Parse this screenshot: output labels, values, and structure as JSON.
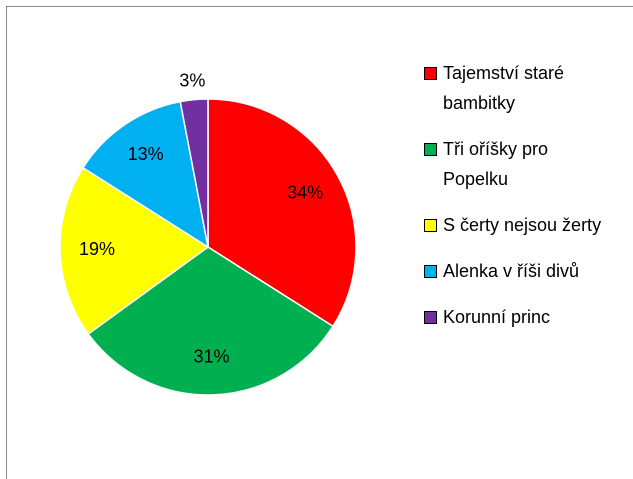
{
  "chart_data": {
    "type": "pie",
    "categories": [
      "Tajemství staré bambitky",
      "Tři oříšky pro Popelku",
      "S čerty nejsou žerty",
      "Alenka v říši divů",
      "Korunní princ"
    ],
    "values": [
      34,
      31,
      19,
      13,
      3
    ],
    "value_labels": [
      "34%",
      "31%",
      "19%",
      "13%",
      "3%"
    ],
    "colors": [
      "#ff0000",
      "#00b050",
      "#ffff00",
      "#00b0f0",
      "#7030a0"
    ],
    "legend": "right"
  }
}
